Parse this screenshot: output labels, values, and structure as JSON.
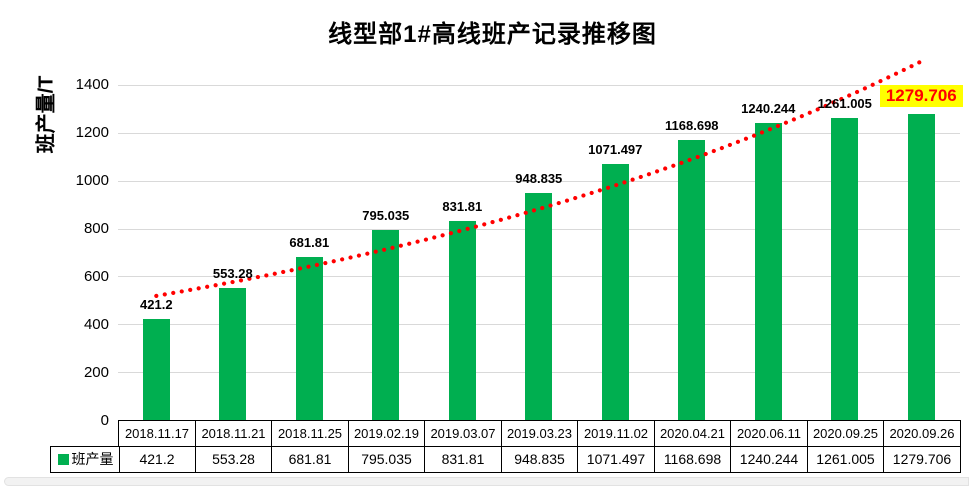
{
  "title": "线型部1#高线班产记录推移图",
  "y_axis": {
    "label": "班产量/T",
    "ticks": [
      "0",
      "200",
      "400",
      "600",
      "800",
      "1000",
      "1200",
      "1400"
    ]
  },
  "legend": {
    "label": "班产量",
    "marker_color": "#00AF50"
  },
  "colors": {
    "bar": "#00AF50",
    "gridline": "#d9d9d9",
    "trendline": "#FF0000",
    "highlight_bg": "#FFFF00",
    "highlight_text": "#FF0000",
    "table_border": "#000000"
  },
  "chart_data": {
    "type": "bar",
    "title": "线型部1#高线班产记录推移图",
    "xlabel": "",
    "ylabel": "班产量/T",
    "ylim": [
      0,
      1500
    ],
    "ytick_step": 200,
    "ytick_max_label": 1400,
    "grid": true,
    "legend_position": "data-table-left",
    "data_table_shown": true,
    "categories": [
      "2018.11.17",
      "2018.11.21",
      "2018.11.25",
      "2019.02.19",
      "2019.03.07",
      "2019.03.23",
      "2019.11.02",
      "2020.04.21",
      "2020.06.11",
      "2020.09.25",
      "2020.09.26"
    ],
    "series": [
      {
        "name": "班产量",
        "color": "#00AF50",
        "values": [
          421.2,
          553.28,
          681.81,
          795.035,
          831.81,
          948.835,
          1071.497,
          1168.698,
          1240.244,
          1261.005,
          1279.706
        ],
        "value_labels": [
          "421.2",
          "553.28",
          "681.81",
          "795.035",
          "831.81",
          "948.835",
          "1071.497",
          "1168.698",
          "1240.244",
          "1261.005",
          "1279.706"
        ]
      }
    ],
    "trendline": {
      "type": "exponential",
      "color": "#FF0000",
      "style": "round-dotted"
    },
    "last_point_highlight": {
      "text": "1279.706",
      "background": "#FFFF00",
      "text_color": "#FF0000"
    }
  }
}
